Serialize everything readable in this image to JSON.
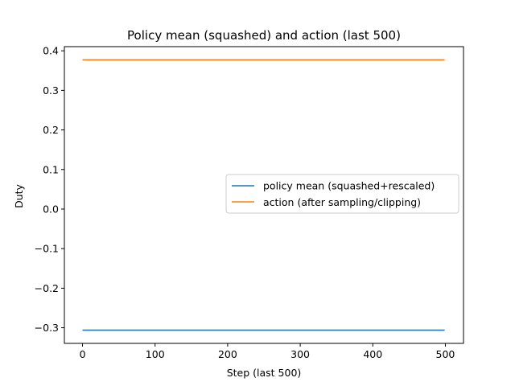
{
  "chart_data": {
    "type": "line",
    "title": "Policy mean (squashed) and action (last 500)",
    "xlabel": "Step (last 500)",
    "ylabel": "Duty",
    "xlim": [
      -25,
      525
    ],
    "ylim": [
      -0.3395,
      0.4105
    ],
    "xticks": [
      0,
      100,
      200,
      300,
      400,
      500
    ],
    "yticks": [
      -0.3,
      -0.2,
      -0.1,
      0.0,
      0.1,
      0.2,
      0.3,
      0.4
    ],
    "xtick_labels": [
      "0",
      "100",
      "200",
      "300",
      "400",
      "500"
    ],
    "ytick_labels": [
      "−0.3",
      "−0.2",
      "−0.1",
      "0.0",
      "0.1",
      "0.2",
      "0.3",
      "0.4"
    ],
    "grid": false,
    "legend_position": "center-right",
    "series": [
      {
        "name": "policy mean (squashed+rescaled)",
        "color": "#1f77b4",
        "x": [
          0,
          499
        ],
        "y": [
          -0.306,
          -0.306
        ]
      },
      {
        "name": "action (after sampling/clipping)",
        "color": "#ff7f0e",
        "x": [
          0,
          499
        ],
        "y": [
          0.377,
          0.377
        ]
      }
    ]
  }
}
